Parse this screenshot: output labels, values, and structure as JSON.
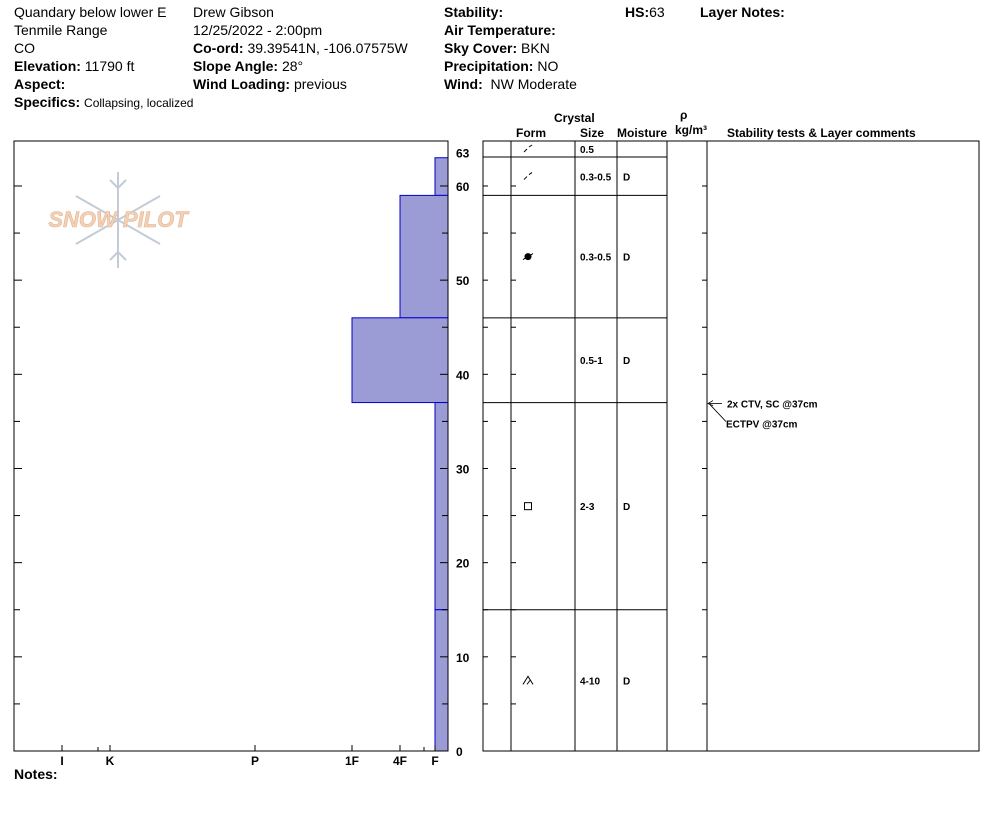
{
  "header": {
    "location": "Quandary below lower E",
    "range": "Tenmile Range",
    "state": "CO",
    "elevation_label": "Elevation:",
    "elevation": "11790 ft",
    "aspect_label": "Aspect:",
    "aspect": "",
    "specifics_label": "Specifics:",
    "specifics": "Collapsing, localized",
    "observer": "Drew Gibson",
    "datetime": "12/25/2022 - 2:00pm",
    "coord_label": "Co-ord:",
    "coord": "39.39541N, -106.07575W",
    "slope_label": "Slope Angle:",
    "slope": "28°",
    "wind_loading_label": "Wind Loading:",
    "wind_loading": "previous",
    "stability_label": "Stability:",
    "air_temp_label": "Air Temperature:",
    "sky_label": "Sky Cover:",
    "sky": "BKN",
    "precip_label": "Precipitation:",
    "precip": "NO",
    "wind_label": "Wind:",
    "wind": "NW Moderate",
    "hs_label": "HS:",
    "hs": "63",
    "layer_notes_label": "Layer Notes:"
  },
  "logo_text": "SNOW PILOT",
  "notes_label": "Notes:",
  "table_headers": {
    "crystal": "Crystal",
    "form": "Form",
    "size": "Size",
    "moisture": "Moisture",
    "rho": "ρ",
    "density": "kg/m³",
    "stability": "Stability tests & Layer comments"
  },
  "chart_data": {
    "type": "bar",
    "y_axis": {
      "min": 0,
      "max": 63,
      "ticks": [
        0,
        10,
        20,
        30,
        40,
        50,
        60,
        63
      ]
    },
    "hardness_labels": [
      "I",
      "K",
      "P",
      "1F",
      "4F",
      "F"
    ],
    "layers": [
      {
        "top": 63,
        "bottom": 59,
        "hardness": "F",
        "form": "precipitation-particles",
        "size": "0.3-0.5",
        "moisture": "D"
      },
      {
        "top": 59,
        "bottom": 46,
        "hardness": "4F",
        "form": "rounding",
        "size": "0.3-0.5",
        "moisture": "D"
      },
      {
        "top": 46,
        "bottom": 37,
        "hardness": "1F",
        "form": "",
        "size": "0.5-1",
        "moisture": "D"
      },
      {
        "top": 37,
        "bottom": 15,
        "hardness": "F",
        "form": "faceted",
        "size": "2-3",
        "moisture": "D"
      },
      {
        "top": 15,
        "bottom": 0,
        "hardness": "F",
        "form": "depth-hoar",
        "size": "4-10",
        "moisture": "D"
      }
    ],
    "surface": {
      "form": "precipitation-particles",
      "size": "0.5",
      "moisture": ""
    },
    "tests": [
      {
        "text": "2x CTV, SC @37cm",
        "depth": 37
      },
      {
        "text": "ECTPV @37cm",
        "depth": 37
      }
    ],
    "bar_color": "#9b9bd6",
    "bar_edge": "#0000cc"
  }
}
